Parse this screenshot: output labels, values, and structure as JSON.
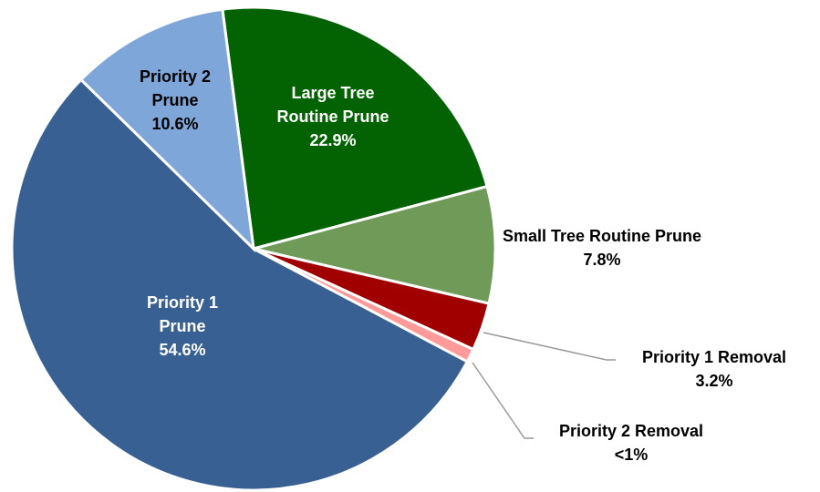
{
  "chart_data": {
    "type": "pie",
    "categories": [
      "Large Tree Routine Prune",
      "Small Tree Routine Prune",
      "Priority 1 Removal",
      "Priority 2 Removal",
      "Priority 1 Prune",
      "Priority 2 Prune"
    ],
    "values": [
      22.9,
      7.8,
      3.2,
      0.9,
      54.6,
      10.6
    ],
    "value_labels": [
      "22.9%",
      "7.8%",
      "3.2%",
      "<1%",
      "54.6%",
      "10.6%"
    ],
    "colors": [
      "#036303",
      "#6f9a58",
      "#a00000",
      "#ff9a9a",
      "#386093",
      "#7fa6d8"
    ]
  }
}
